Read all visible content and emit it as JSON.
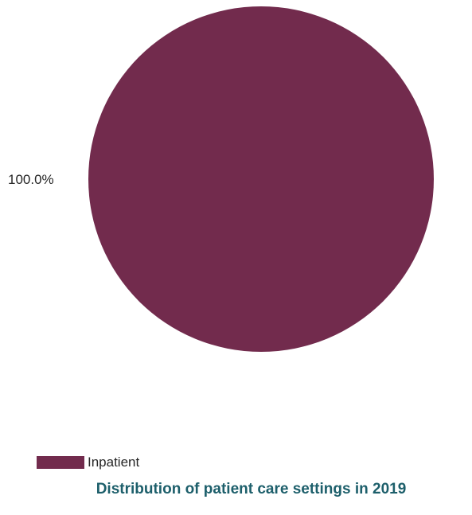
{
  "chart_data": {
    "type": "pie",
    "title": "Distribution of patient care settings in 2019",
    "slices": [
      {
        "label": "Inpatient",
        "value": 100.0,
        "display": "100.0%",
        "color": "#722b4d"
      }
    ],
    "legend_position": "bottom-left"
  }
}
